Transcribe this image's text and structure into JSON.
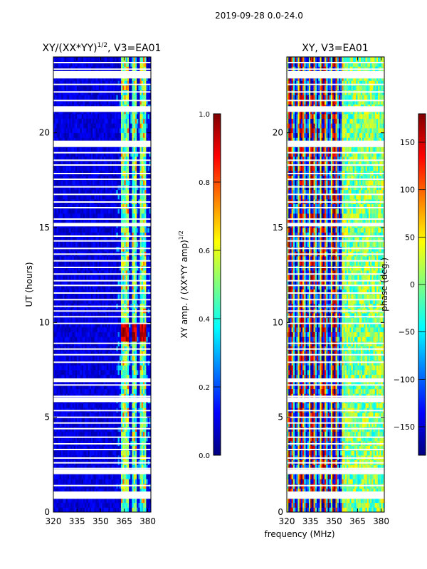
{
  "figure": {
    "suptitle": "2019-09-28 0.0-24.0",
    "shared_xlabel": "frequency (MHz)"
  },
  "colors": {
    "jet": [
      "#00007f",
      "#0000ff",
      "#007fff",
      "#00ffff",
      "#7fff7f",
      "#ffff00",
      "#ff7f00",
      "#ff0000",
      "#7f0000"
    ]
  },
  "chart_data": [
    {
      "type": "heatmap",
      "title_main": "XY/(XX*YY)",
      "title_exp": "1/2",
      "title_suffix": ", V3=EA01",
      "xlabel": "",
      "ylabel": "UT (hours)",
      "xlim": [
        320,
        382
      ],
      "ylim": [
        0,
        24
      ],
      "xticks": [
        320,
        335,
        350,
        365,
        380
      ],
      "yticks": [
        0,
        5,
        10,
        15,
        20
      ],
      "colorbar": {
        "label_main": "XY amp. / (XX*YY amp)",
        "label_exp": "1/2",
        "range": [
          0.0,
          1.0
        ],
        "ticks": [
          0.0,
          0.2,
          0.4,
          0.6,
          0.8,
          1.0
        ],
        "tick_labels": [
          "0.0",
          "0.2",
          "0.4",
          "0.6",
          "0.8",
          "1.0"
        ]
      },
      "bright_bands_MHz": [
        [
          363,
          368
        ],
        [
          370,
          373
        ],
        [
          375,
          379
        ]
      ],
      "peak_amplitude_hours": [
        9.0,
        9.9
      ]
    },
    {
      "type": "heatmap",
      "title_main": "XY, V3=EA01",
      "xlabel": "frequency (MHz)",
      "ylabel": "",
      "xlim": [
        320,
        382
      ],
      "ylim": [
        0,
        24
      ],
      "xticks": [
        320,
        335,
        350,
        365,
        380
      ],
      "yticks": [
        0,
        5,
        10,
        15,
        20
      ],
      "colorbar": {
        "label_main": "phase (deg.)",
        "range": [
          -180,
          180
        ],
        "ticks": [
          -150,
          -100,
          -50,
          0,
          50,
          100,
          150
        ],
        "tick_labels": [
          "−150",
          "−100",
          "−50",
          "0",
          "50",
          "100",
          "150"
        ]
      }
    }
  ],
  "flagged_hours": [
    0.75,
    1.05,
    1.4,
    2.05,
    2.3,
    2.6,
    2.85,
    3.3,
    3.6,
    3.95,
    4.4,
    4.7,
    5.0,
    5.35,
    5.9,
    6.1,
    6.7,
    6.95,
    7.9,
    8.3,
    8.6,
    8.9,
    9.95,
    10.3,
    10.6,
    10.85,
    11.2,
    11.55,
    11.95,
    12.2,
    12.55,
    12.9,
    13.25,
    13.6,
    13.9,
    14.3,
    14.55,
    15.1,
    15.45,
    16.05,
    16.35,
    16.75,
    17.15,
    17.55,
    17.85,
    18.3,
    18.55,
    18.95,
    19.3,
    19.55,
    21.15,
    21.35,
    21.7,
    22.15,
    22.55,
    22.9,
    23.35,
    23.7
  ],
  "flagged_wide_hours": [
    [
      0.7,
      1.05
    ],
    [
      2.0,
      2.25
    ],
    [
      5.8,
      6.05
    ],
    [
      6.85,
      7.05
    ],
    [
      15.1,
      15.25
    ],
    [
      19.25,
      19.55
    ],
    [
      21.1,
      21.4
    ],
    [
      22.9,
      23.25
    ]
  ]
}
